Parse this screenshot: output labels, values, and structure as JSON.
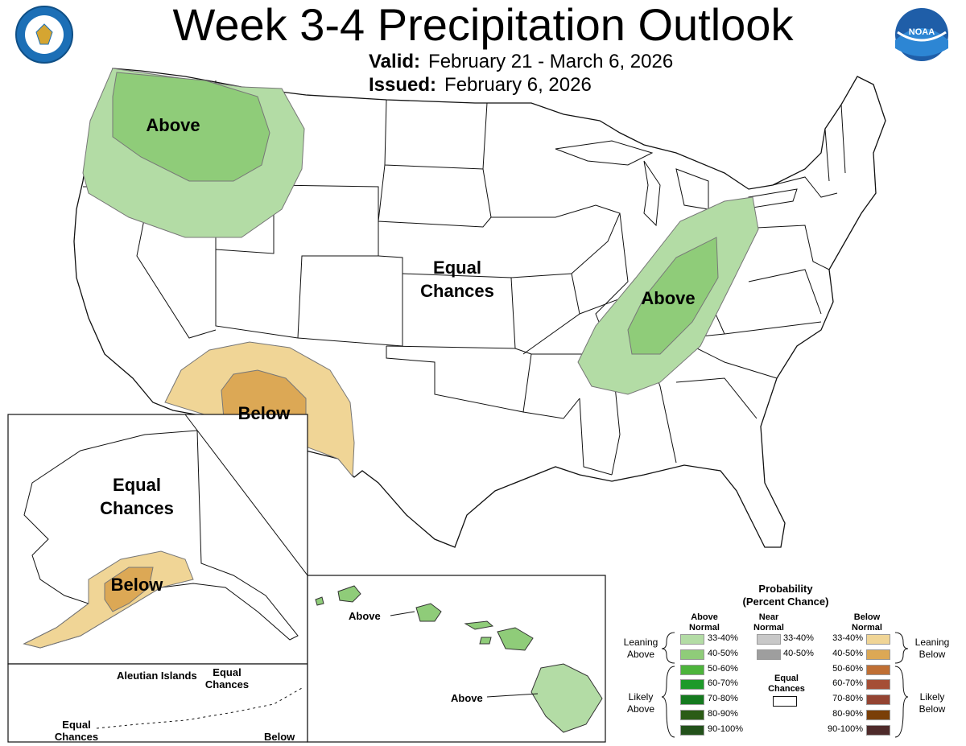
{
  "header": {
    "title": "Week 3-4 Precipitation Outlook",
    "valid_label": "Valid:",
    "valid_value": "February 21 - March 6, 2026",
    "issued_label": "Issued:",
    "issued_value": "February 6, 2026"
  },
  "logos": {
    "left": "department-of-commerce-seal",
    "right": "NOAA",
    "right_text": "NOAA"
  },
  "map_labels": {
    "northwest": "Above",
    "center_line1": "Equal",
    "center_line2": "Chances",
    "ohio_valley": "Above",
    "southwest": "Below",
    "alaska_line1": "Equal",
    "alaska_line2": "Chances",
    "alaska_south": "Below",
    "aleutian_islands": "Aleutian Islands",
    "aleutian_ec_line1": "Equal",
    "aleutian_ec_line2": "Chances",
    "aleutian_west_line1": "Equal",
    "aleutian_west_line2": "Chances",
    "aleutian_below": "Below",
    "hawaii_north": "Above",
    "hawaii_south": "Above"
  },
  "legend": {
    "title_line1": "Probability",
    "title_line2": "(Percent Chance)",
    "above_head_line1": "Above",
    "above_head_line2": "Normal",
    "near_head_line1": "Near",
    "near_head_line2": "Normal",
    "below_head_line1": "Below",
    "below_head_line2": "Normal",
    "above_bins": [
      "33-40%",
      "40-50%",
      "50-60%",
      "60-70%",
      "70-80%",
      "80-90%",
      "90-100%"
    ],
    "near_bins": [
      "33-40%",
      "40-50%"
    ],
    "below_bins": [
      "33-40%",
      "40-50%",
      "50-60%",
      "60-70%",
      "70-80%",
      "80-90%",
      "90-100%"
    ],
    "equal_line1": "Equal",
    "equal_line2": "Chances",
    "leaning_above_line1": "Leaning",
    "leaning_above_line2": "Above",
    "likely_above_line1": "Likely",
    "likely_above_line2": "Above",
    "leaning_below_line1": "Leaning",
    "leaning_below_line2": "Below",
    "likely_below_line1": "Likely",
    "likely_below_line2": "Below",
    "colors": {
      "above": [
        "#b3dca5",
        "#8fcc79",
        "#4db43c",
        "#1e9a2a",
        "#157a1f",
        "#2b5c16",
        "#22511a"
      ],
      "near": [
        "#c8c8c8",
        "#9e9e9e"
      ],
      "below": [
        "#f0d596",
        "#dca855",
        "#bf6f34",
        "#a54e35",
        "#944432",
        "#7a3f08",
        "#4e2a2a"
      ]
    }
  }
}
